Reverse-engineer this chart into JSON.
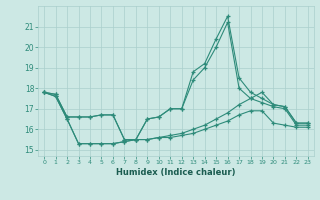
{
  "xlabel": "Humidex (Indice chaleur)",
  "x": [
    0,
    1,
    2,
    3,
    4,
    5,
    6,
    7,
    8,
    9,
    10,
    11,
    12,
    13,
    14,
    15,
    16,
    17,
    18,
    19,
    20,
    21,
    22,
    23
  ],
  "line1": [
    17.8,
    17.7,
    16.6,
    16.6,
    16.6,
    16.7,
    16.7,
    15.5,
    15.5,
    16.5,
    16.6,
    17.0,
    17.0,
    18.8,
    19.2,
    20.4,
    21.5,
    18.5,
    17.8,
    17.5,
    17.2,
    17.1,
    16.3,
    16.3
  ],
  "line2": [
    17.8,
    17.7,
    16.6,
    16.6,
    16.6,
    16.7,
    16.7,
    15.5,
    15.5,
    16.5,
    16.6,
    17.0,
    17.0,
    18.4,
    19.0,
    20.0,
    21.2,
    18.0,
    17.5,
    17.3,
    17.1,
    17.0,
    16.2,
    16.2
  ],
  "line3": [
    17.8,
    17.6,
    16.5,
    15.3,
    15.3,
    15.3,
    15.3,
    15.4,
    15.5,
    15.5,
    15.6,
    15.7,
    15.8,
    16.0,
    16.2,
    16.5,
    16.8,
    17.2,
    17.5,
    17.8,
    17.2,
    17.1,
    16.3,
    16.3
  ],
  "line4": [
    17.8,
    17.6,
    16.5,
    15.3,
    15.3,
    15.3,
    15.3,
    15.4,
    15.5,
    15.5,
    15.6,
    15.6,
    15.7,
    15.8,
    16.0,
    16.2,
    16.4,
    16.7,
    16.9,
    16.9,
    16.3,
    16.2,
    16.1,
    16.1
  ],
  "color": "#2e8b7a",
  "bg_color": "#cce8e4",
  "grid_color": "#aacfcc",
  "ylim": [
    14.7,
    22.0
  ],
  "yticks": [
    15,
    16,
    17,
    18,
    19,
    20,
    21
  ],
  "xlim": [
    -0.5,
    23.5
  ],
  "xticks": [
    0,
    1,
    2,
    3,
    4,
    5,
    6,
    7,
    8,
    9,
    10,
    11,
    12,
    13,
    14,
    15,
    16,
    17,
    18,
    19,
    20,
    21,
    22,
    23
  ]
}
